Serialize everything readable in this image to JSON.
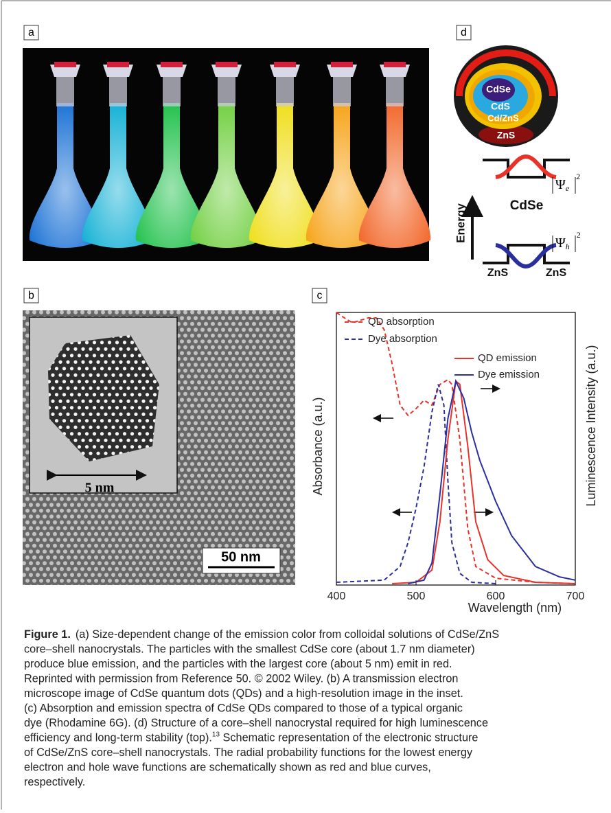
{
  "panels": {
    "a": {
      "label": "a"
    },
    "b": {
      "label": "b",
      "inset_scale": "5 nm",
      "scale_bar": "50 nm"
    },
    "c": {
      "label": "c"
    },
    "d": {
      "label": "d",
      "layers": [
        "CdSe",
        "CdS",
        "Cd/ZnS",
        "ZnS"
      ],
      "energy_label": "Energy",
      "well_label": "CdSe",
      "barrier_left": "ZnS",
      "barrier_right": "ZnS",
      "psi_e": {
        "symbol": "Ψ",
        "sub": "e",
        "sup": "2"
      },
      "psi_h": {
        "symbol": "Ψ",
        "sub": "h",
        "sup": "2"
      }
    }
  },
  "chart_data": {
    "type": "line",
    "x_label": "Wavelength (nm)",
    "y_label": "Absorbance (a.u.)",
    "y2_label": "Luminescence Intensity (a.u.)",
    "xlim": [
      400,
      700
    ],
    "xticks": [
      400,
      500,
      600,
      700
    ],
    "ylim": [
      0,
      1
    ],
    "series": [
      {
        "name": "QD absorption",
        "color": "#e8322a",
        "dashed": true,
        "x": [
          400,
          410,
          420,
          440,
          450,
          460,
          470,
          480,
          490,
          500,
          510,
          520,
          530,
          540,
          545,
          555,
          565,
          575,
          600,
          650,
          700
        ],
        "values": [
          1.0,
          0.98,
          0.962,
          0.98,
          0.98,
          0.937,
          0.811,
          0.66,
          0.622,
          0.647,
          0.678,
          0.66,
          0.736,
          0.753,
          0.736,
          0.534,
          0.207,
          0.068,
          0.025,
          0.01,
          0.005
        ]
      },
      {
        "name": "Dye absorption",
        "color": "#2b2f9e",
        "dashed": true,
        "x": [
          400,
          460,
          480,
          490,
          500,
          510,
          520,
          528,
          535,
          540,
          545,
          555,
          570,
          600
        ],
        "values": [
          0.01,
          0.018,
          0.068,
          0.156,
          0.282,
          0.433,
          0.635,
          0.736,
          0.66,
          0.383,
          0.156,
          0.043,
          0.01,
          0.005
        ]
      },
      {
        "name": "QD emission",
        "color": "#e8322a",
        "dashed": false,
        "x": [
          470,
          500,
          520,
          530,
          540,
          550,
          555,
          565,
          575,
          590,
          610,
          650,
          700
        ],
        "values": [
          0.005,
          0.01,
          0.055,
          0.232,
          0.534,
          0.748,
          0.736,
          0.509,
          0.232,
          0.093,
          0.035,
          0.01,
          0.005
        ]
      },
      {
        "name": "Dye emission",
        "color": "#2b2f9e",
        "dashed": false,
        "x": [
          490,
          510,
          520,
          530,
          540,
          550,
          560,
          570,
          580,
          600,
          620,
          650,
          680,
          700
        ],
        "values": [
          0.005,
          0.018,
          0.081,
          0.332,
          0.61,
          0.748,
          0.685,
          0.559,
          0.458,
          0.307,
          0.181,
          0.068,
          0.03,
          0.018
        ]
      }
    ]
  },
  "caption": {
    "label": "Figure 1.",
    "lines": [
      "(a) Size-dependent change of the emission color from colloidal solutions of CdSe/ZnS",
      "core–shell nanocrystals. The particles with the smallest CdSe core (about 1.7 nm diameter)",
      "produce blue emission, and the particles with the largest core (about 5 nm) emit in red.",
      "Reprinted with permission from Reference 50. © 2002 Wiley. (b) A transmission electron",
      "microscope image of CdSe quantum dots (QDs) and a high-resolution image in the inset.",
      "(c) Absorption and emission spectra of CdSe QDs compared to those of a typical organic",
      "dye (Rhodamine 6G). (d) Structure of a core–shell nanocrystal required for high luminescence",
      {
        "text": "efficiency and long-term stability (top).",
        "sup": "13",
        "rest": " Schematic representation of the electronic structure"
      },
      "of CdSe/ZnS core–shell nanocrystals. The radial probability functions for the lowest energy",
      "electron and hole wave functions are schematically shown as red and blue curves,",
      "respectively."
    ]
  }
}
